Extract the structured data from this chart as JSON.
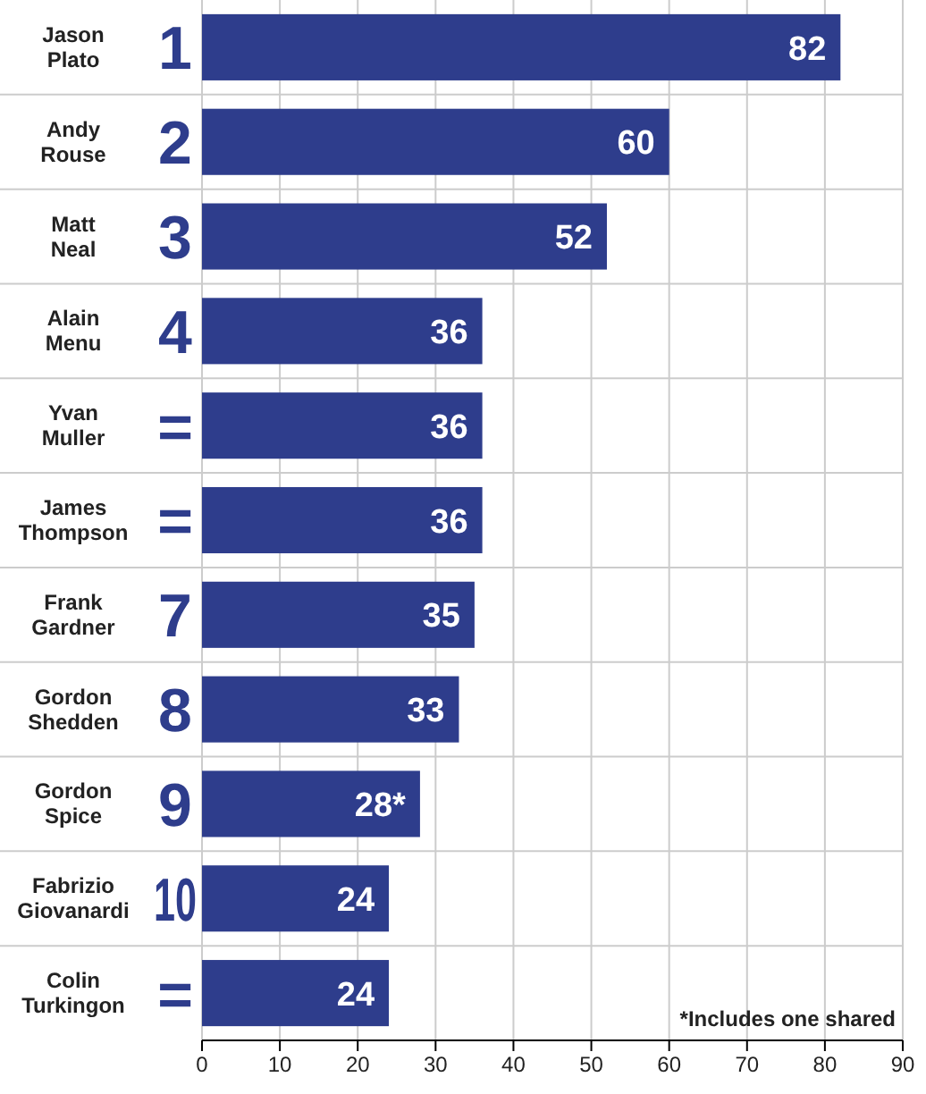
{
  "chart_data": {
    "type": "bar",
    "orientation": "horizontal",
    "categories": [
      "Jason Plato",
      "Andy Rouse",
      "Matt Neal",
      "Alain Menu",
      "Yvan Muller",
      "James Thompson",
      "Frank Gardner",
      "Gordon Shedden",
      "Gordon Spice",
      "Fabrizio Giovanardi",
      "Colin Turkingon"
    ],
    "values": [
      82,
      60,
      52,
      36,
      36,
      36,
      35,
      33,
      28,
      24,
      24
    ],
    "value_labels": [
      "82",
      "60",
      "52",
      "36",
      "36",
      "36",
      "35",
      "33",
      "28*",
      "24",
      "24"
    ],
    "color": "#2e3d8c",
    "xlim": [
      0,
      90
    ],
    "xticks": [
      0,
      10,
      20,
      30,
      40,
      50,
      60,
      70,
      80,
      90
    ],
    "grid": true,
    "annotations": [
      "1",
      "2",
      "3",
      "4",
      "=",
      "=",
      "7",
      "8",
      "9",
      "10",
      "=",
      "*Includes one shared"
    ]
  }
}
